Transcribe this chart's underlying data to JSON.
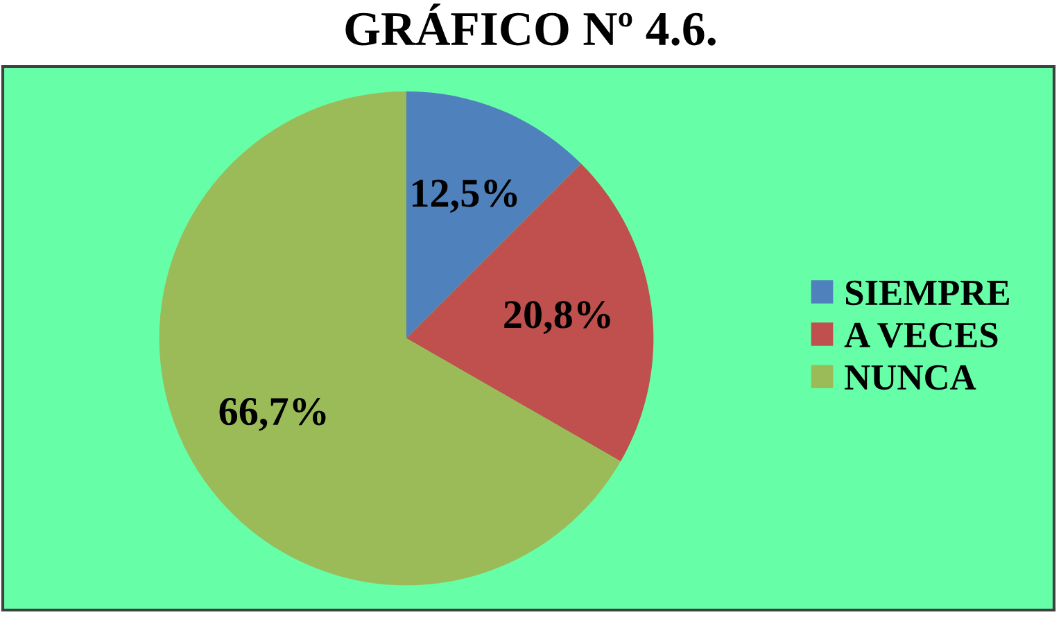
{
  "chart_data": {
    "type": "pie",
    "title": "GRÁFICO Nº 4.6.",
    "categories": [
      "SIEMPRE",
      "A VECES",
      "NUNCA"
    ],
    "values": [
      12.5,
      20.8,
      66.7
    ],
    "colors": [
      "#4f81bd",
      "#c0504d",
      "#9bbb59"
    ],
    "value_labels": [
      "12,5%",
      "20,8%",
      "66,7%"
    ],
    "legend": "right"
  }
}
